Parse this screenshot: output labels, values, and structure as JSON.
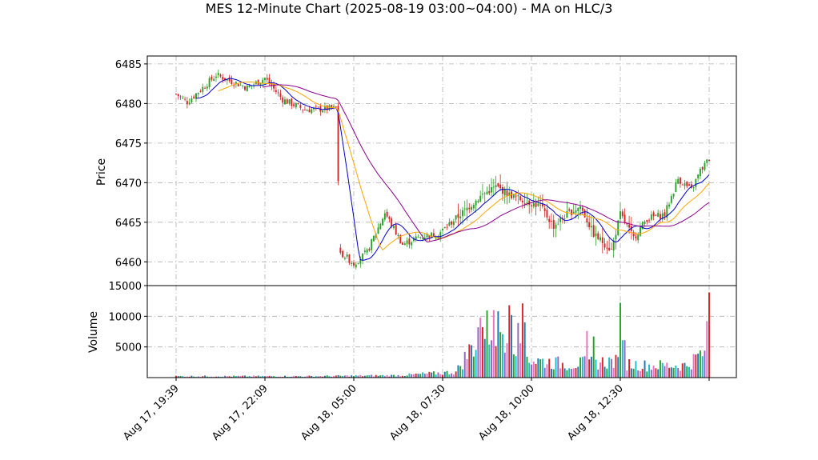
{
  "chart_data": {
    "type": "candlestick",
    "title": "MES 12-Minute Chart (2025-08-19 03:00~04:00) - MA on HLC/3",
    "price_panel": {
      "ylabel": "Price",
      "ylim": [
        6457,
        6486
      ],
      "yticks": [
        6460,
        6465,
        6470,
        6475,
        6480,
        6485
      ],
      "grid": true
    },
    "volume_panel": {
      "ylabel": "Volume",
      "ylim": [
        0,
        15000
      ],
      "yticks": [
        5000,
        10000,
        15000
      ],
      "grid": true
    },
    "x_tick_labels": [
      {
        "index": 0,
        "label": "Aug 17, 19:39"
      },
      {
        "index": 40,
        "label": "Aug 17, 22:09"
      },
      {
        "index": 80,
        "label": "Aug 18, 05:00"
      },
      {
        "index": 120,
        "label": "Aug 18, 07:30"
      },
      {
        "index": 160,
        "label": "Aug 18, 10:00"
      },
      {
        "index": 200,
        "label": "Aug 18, 12:30"
      },
      {
        "index": 240,
        "label": ""
      }
    ],
    "bar_count": 241,
    "anchors": [
      [
        0,
        6481.2
      ],
      [
        5,
        6480.2
      ],
      [
        12,
        6482.0
      ],
      [
        18,
        6483.6
      ],
      [
        25,
        6482.8
      ],
      [
        32,
        6482.0
      ],
      [
        40,
        6483.2
      ],
      [
        48,
        6480.5
      ],
      [
        58,
        6479.2
      ],
      [
        72,
        6479.4
      ],
      [
        74,
        6461.2
      ],
      [
        80,
        6459.8
      ],
      [
        86,
        6461.2
      ],
      [
        94,
        6466.2
      ],
      [
        102,
        6462.2
      ],
      [
        110,
        6463.2
      ],
      [
        118,
        6463.5
      ],
      [
        124,
        6465.0
      ],
      [
        132,
        6467.0
      ],
      [
        138,
        6468.5
      ],
      [
        144,
        6469.5
      ],
      [
        150,
        6468.5
      ],
      [
        156,
        6467.8
      ],
      [
        164,
        6467.0
      ],
      [
        170,
        6464.5
      ],
      [
        176,
        6466.0
      ],
      [
        182,
        6467.0
      ],
      [
        188,
        6463.5
      ],
      [
        196,
        6461.5
      ],
      [
        200,
        6466.0
      ],
      [
        206,
        6463.0
      ],
      [
        212,
        6465.5
      ],
      [
        220,
        6466.0
      ],
      [
        226,
        6470.5
      ],
      [
        232,
        6469.0
      ],
      [
        236,
        6471.5
      ],
      [
        240,
        6473.0
      ]
    ],
    "volume_anchors": [
      [
        0,
        250
      ],
      [
        60,
        250
      ],
      [
        100,
        400
      ],
      [
        126,
        1000
      ],
      [
        138,
        8500
      ],
      [
        150,
        9000
      ],
      [
        160,
        3200
      ],
      [
        176,
        2400
      ],
      [
        196,
        2900
      ],
      [
        210,
        2200
      ],
      [
        230,
        2200
      ],
      [
        240,
        5500
      ]
    ],
    "volume_spikes": [
      [
        136,
        8200
      ],
      [
        137,
        9800
      ],
      [
        143,
        11000
      ],
      [
        150,
        11800
      ],
      [
        151,
        10200
      ],
      [
        156,
        12100
      ],
      [
        157,
        9000
      ],
      [
        185,
        7600
      ],
      [
        188,
        6700
      ],
      [
        200,
        12200
      ],
      [
        201,
        6100
      ],
      [
        202,
        6100
      ],
      [
        238,
        4400
      ],
      [
        239,
        9200
      ],
      [
        240,
        13900
      ]
    ],
    "moving_averages": [
      {
        "color": "#0000cc",
        "window": 10
      },
      {
        "color": "#ffa500",
        "window": 20
      },
      {
        "color": "#8b008b",
        "window": 40
      }
    ],
    "colors": {
      "up": "#2ca02c",
      "down": "#d62728",
      "volume": [
        "#d62728",
        "#1f77b4",
        "#2ca02c",
        "#17becf",
        "#9467bd",
        "#e377c2"
      ]
    }
  }
}
